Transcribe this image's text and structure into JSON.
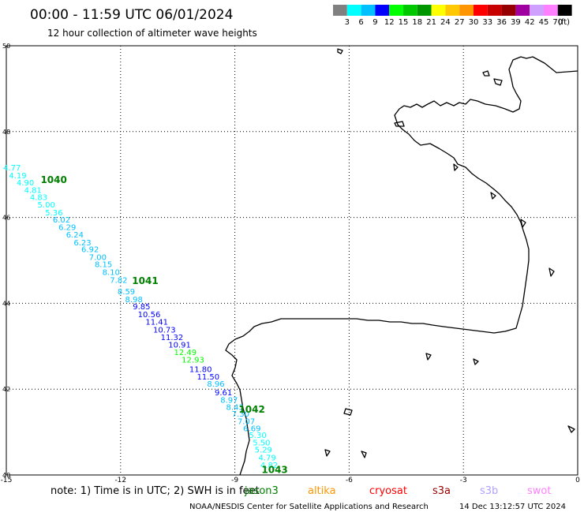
{
  "title": "00:00 - 11:59 UTC 06/01/2024",
  "subtitle": "12 hour collection of altimeter wave heights",
  "colorbar": {
    "colors": [
      "#808080",
      "#00ffff",
      "#00c0ff",
      "#0000ff",
      "#00ff00",
      "#00c800",
      "#009600",
      "#ffff00",
      "#ffc800",
      "#ff9600",
      "#ff0000",
      "#c80000",
      "#960000",
      "#a000a0",
      "#d0a0ff",
      "#ff80ff",
      "#000000"
    ],
    "labels": [
      "3",
      "6",
      "9",
      "12",
      "15",
      "18",
      "21",
      "24",
      "27",
      "30",
      "33",
      "36",
      "39",
      "42",
      "45",
      "70"
    ],
    "unit": "(ft)"
  },
  "x_ticks": [
    "-15",
    "-12",
    "-9",
    "-6",
    "-3",
    "0"
  ],
  "y_ticks": [
    "50",
    "48",
    "46",
    "44",
    "42",
    "40"
  ],
  "track_labels": [
    {
      "text": "1040",
      "lon": -14.1,
      "lat": 46.8
    },
    {
      "text": "1041",
      "lon": -11.7,
      "lat": 44.45
    },
    {
      "text": "1042",
      "lon": -8.9,
      "lat": 41.45
    },
    {
      "text": "1043",
      "lon": -8.3,
      "lat": 40.05
    }
  ],
  "wave_points": [
    {
      "v": "4.77",
      "lon": -14.85,
      "lat": 47.1,
      "color": "#00ffff"
    },
    {
      "v": "4.19",
      "lon": -14.7,
      "lat": 46.91,
      "color": "#00ffff"
    },
    {
      "v": "4.90",
      "lon": -14.5,
      "lat": 46.75,
      "color": "#00ffff"
    },
    {
      "v": "4.81",
      "lon": -14.3,
      "lat": 46.57,
      "color": "#00ffff"
    },
    {
      "v": "4.83",
      "lon": -14.15,
      "lat": 46.41,
      "color": "#00ffff"
    },
    {
      "v": "5.00",
      "lon": -13.95,
      "lat": 46.23,
      "color": "#00ffff"
    },
    {
      "v": "5.36",
      "lon": -13.75,
      "lat": 46.05,
      "color": "#00ffff"
    },
    {
      "v": "6.02",
      "lon": -13.55,
      "lat": 45.88,
      "color": "#00c0ff"
    },
    {
      "v": "6.29",
      "lon": -13.4,
      "lat": 45.71,
      "color": "#00c0ff"
    },
    {
      "v": "6.24",
      "lon": -13.2,
      "lat": 45.53,
      "color": "#00c0ff"
    },
    {
      "v": "6.23",
      "lon": -13.0,
      "lat": 45.35,
      "color": "#00c0ff"
    },
    {
      "v": "6.92",
      "lon": -12.8,
      "lat": 45.19,
      "color": "#00c0ff"
    },
    {
      "v": "7.00",
      "lon": -12.6,
      "lat": 45.01,
      "color": "#00c0ff"
    },
    {
      "v": "8.15",
      "lon": -12.45,
      "lat": 44.84,
      "color": "#00c0ff"
    },
    {
      "v": "8.10",
      "lon": -12.25,
      "lat": 44.66,
      "color": "#00c0ff"
    },
    {
      "v": "7.82",
      "lon": -12.05,
      "lat": 44.48,
      "color": "#00c0ff"
    },
    {
      "v": "8.59",
      "lon": -11.85,
      "lat": 44.21,
      "color": "#00c0ff"
    },
    {
      "v": "8.98",
      "lon": -11.65,
      "lat": 44.03,
      "color": "#00c0ff"
    },
    {
      "v": "9.85",
      "lon": -11.45,
      "lat": 43.86,
      "color": "#0000ff"
    },
    {
      "v": "10.56",
      "lon": -11.25,
      "lat": 43.68,
      "color": "#0000ff"
    },
    {
      "v": "11.41",
      "lon": -11.05,
      "lat": 43.5,
      "color": "#0000ff"
    },
    {
      "v": "10.73",
      "lon": -10.85,
      "lat": 43.32,
      "color": "#0000ff"
    },
    {
      "v": "11.32",
      "lon": -10.65,
      "lat": 43.14,
      "color": "#0000ff"
    },
    {
      "v": "10.91",
      "lon": -10.45,
      "lat": 42.97,
      "color": "#0000ff"
    },
    {
      "v": "12.49",
      "lon": -10.3,
      "lat": 42.79,
      "color": "#00ff00"
    },
    {
      "v": "12.93",
      "lon": -10.1,
      "lat": 42.62,
      "color": "#00ff00"
    },
    {
      "v": "11.80",
      "lon": -9.9,
      "lat": 42.4,
      "color": "#0000ff"
    },
    {
      "v": "11.50",
      "lon": -9.7,
      "lat": 42.22,
      "color": "#0000ff"
    },
    {
      "v": "8.96",
      "lon": -9.5,
      "lat": 42.06,
      "color": "#00c0ff"
    },
    {
      "v": "9.61",
      "lon": -9.3,
      "lat": 41.86,
      "color": "#0000ff"
    },
    {
      "v": "8.97",
      "lon": -9.15,
      "lat": 41.68,
      "color": "#00c0ff"
    },
    {
      "v": "8.43",
      "lon": -9.0,
      "lat": 41.52,
      "color": "#00c0ff"
    },
    {
      "v": "7.30",
      "lon": -8.85,
      "lat": 41.36,
      "color": "#00c0ff"
    },
    {
      "v": "7.07",
      "lon": -8.7,
      "lat": 41.19,
      "color": "#00c0ff"
    },
    {
      "v": "6.69",
      "lon": -8.55,
      "lat": 41.02,
      "color": "#00c0ff"
    },
    {
      "v": "5.30",
      "lon": -8.4,
      "lat": 40.86,
      "color": "#00ffff"
    },
    {
      "v": "5.50",
      "lon": -8.3,
      "lat": 40.69,
      "color": "#00ffff"
    },
    {
      "v": "5.29",
      "lon": -8.25,
      "lat": 40.52,
      "color": "#00ffff"
    },
    {
      "v": "4.79",
      "lon": -8.15,
      "lat": 40.34,
      "color": "#00ffff"
    },
    {
      "v": "4.82",
      "lon": -8.1,
      "lat": 40.17,
      "color": "#00ffff"
    }
  ],
  "footer": {
    "note": "note: 1) Time is in UTC; 2) SWH is in feet",
    "satellites": [
      {
        "name": "jason3",
        "color": "#008000"
      },
      {
        "name": "altika",
        "color": "#ff9600"
      },
      {
        "name": "cryosat",
        "color": "#ff0000"
      },
      {
        "name": "s3a",
        "color": "#960000"
      },
      {
        "name": "s3b",
        "color": "#b0a0ff"
      },
      {
        "name": "swot",
        "color": "#ff80ff"
      }
    ],
    "credit": "NOAA/NESDIS Center for Satellite Applications and Research",
    "timestamp": "14 Dec 13:12:57 UTC 2024"
  }
}
